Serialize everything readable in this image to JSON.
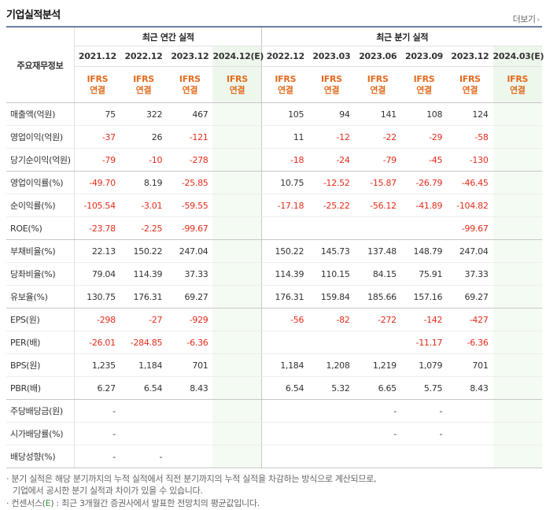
{
  "title": "기업실적분석",
  "more_label": "더보기",
  "more_arrow": "›",
  "table": {
    "row_header": "주요재무정보",
    "groups": {
      "annual": "최근 연간 실적",
      "quarter": "최근 분기 실적"
    },
    "periods": [
      "2021.12",
      "2022.12",
      "2023.12",
      "2024.12(E)",
      "2022.12",
      "2023.03",
      "2023.06",
      "2023.09",
      "2023.12",
      "2024.03(E)"
    ],
    "ifrs": [
      "IFRS",
      "IFRS",
      "IFRS",
      "IFRS",
      "IFRS",
      "IFRS",
      "IFRS",
      "IFRS",
      "IFRS",
      "IFRS"
    ],
    "basis": [
      "연결",
      "연결",
      "연결",
      "연결",
      "연결",
      "연결",
      "연결",
      "연결",
      "연결",
      "연결"
    ],
    "rows": [
      {
        "label": "매출액(억원)",
        "values": [
          "75",
          "322",
          "467",
          "",
          "105",
          "94",
          "141",
          "108",
          "124",
          ""
        ]
      },
      {
        "label": "영업이익(억원)",
        "values": [
          "-37",
          "26",
          "-121",
          "",
          "11",
          "-12",
          "-22",
          "-29",
          "-58",
          ""
        ]
      },
      {
        "label": "당기순이익(억원)",
        "values": [
          "-79",
          "-10",
          "-278",
          "",
          "-18",
          "-24",
          "-79",
          "-45",
          "-130",
          ""
        ]
      },
      {
        "label": "영업이익률(%)",
        "values": [
          "-49.70",
          "8.19",
          "-25.85",
          "",
          "10.75",
          "-12.52",
          "-15.87",
          "-26.79",
          "-46.45",
          ""
        ]
      },
      {
        "label": "순이익률(%)",
        "values": [
          "-105.54",
          "-3.01",
          "-59.55",
          "",
          "-17.18",
          "-25.22",
          "-56.12",
          "-41.89",
          "-104.82",
          ""
        ]
      },
      {
        "label": "ROE(%)",
        "values": [
          "-23.78",
          "-2.25",
          "-99.67",
          "",
          "",
          "",
          "",
          "",
          "-99.67",
          ""
        ]
      },
      {
        "label": "부채비율(%)",
        "values": [
          "22.13",
          "150.22",
          "247.04",
          "",
          "150.22",
          "145.73",
          "137.48",
          "148.79",
          "247.04",
          ""
        ]
      },
      {
        "label": "당좌비율(%)",
        "values": [
          "79.04",
          "114.39",
          "37.33",
          "",
          "114.39",
          "110.15",
          "84.15",
          "75.91",
          "37.33",
          ""
        ]
      },
      {
        "label": "유보율(%)",
        "values": [
          "130.75",
          "176.31",
          "69.27",
          "",
          "176.31",
          "159.84",
          "185.66",
          "157.16",
          "69.27",
          ""
        ]
      },
      {
        "label": "EPS(원)",
        "values": [
          "-298",
          "-27",
          "-929",
          "",
          "-56",
          "-82",
          "-272",
          "-142",
          "-427",
          ""
        ]
      },
      {
        "label": "PER(배)",
        "values": [
          "-26.01",
          "-284.85",
          "-6.36",
          "",
          "",
          "",
          "",
          "-11.17",
          "-6.36",
          ""
        ]
      },
      {
        "label": "BPS(원)",
        "values": [
          "1,235",
          "1,184",
          "701",
          "",
          "1,184",
          "1,208",
          "1,219",
          "1,079",
          "701",
          ""
        ]
      },
      {
        "label": "PBR(배)",
        "values": [
          "6.27",
          "6.54",
          "8.43",
          "",
          "6.54",
          "5.32",
          "6.65",
          "5.75",
          "8.43",
          ""
        ]
      },
      {
        "label": "주당배당금(원)",
        "values": [
          "-",
          "",
          "",
          "",
          "",
          "",
          "-",
          "-",
          "",
          ""
        ]
      },
      {
        "label": "시가배당률(%)",
        "values": [
          "-",
          "",
          "",
          "",
          "",
          "",
          "-",
          "-",
          "",
          ""
        ]
      },
      {
        "label": "배당성향(%)",
        "values": [
          "-",
          "-",
          "",
          "",
          "",
          "",
          "",
          "",
          "",
          ""
        ]
      }
    ]
  },
  "footnotes": {
    "line1": "· 분기 실적은 해당 분기까지의 누적 실적에서 직전 분기까지의 누적 실적을 차감하는 방식으로 계산되므로,",
    "line2": "기업에서 공시한 분기 실적과 차이가 있을 수 있습니다.",
    "line3_prefix": "· 컨센서스(",
    "line3_e": "E",
    "line3_suffix": ") : 최근 3개월간 증권사에서 발표한 전망치의 평균값입니다."
  },
  "colors": {
    "negative": "#e62c1a",
    "ifrs": "#e36b1f",
    "estimate_bg": "#f4fbf2",
    "border_top": "#6b7fa8"
  }
}
